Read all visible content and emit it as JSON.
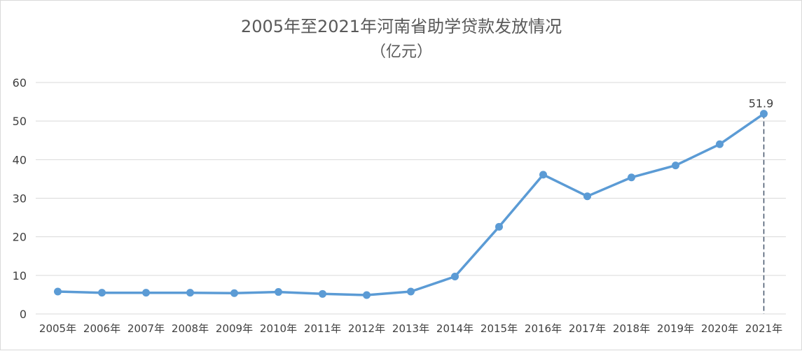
{
  "chart_data": {
    "type": "line",
    "title": "2005年至2021年河南省助学贷款发放情况",
    "subtitle": "（亿元）",
    "xlabel": "",
    "ylabel": "",
    "ylim": [
      0,
      60
    ],
    "yticks": [
      0,
      10,
      20,
      30,
      40,
      50,
      60
    ],
    "grid": true,
    "legend": "none",
    "colors": {
      "line": "#5b9bd5",
      "grid": "#d9d9d9",
      "axis": "#d9d9d9",
      "dash": "#44546a"
    },
    "categories": [
      "2005年",
      "2006年",
      "2007年",
      "2008年",
      "2009年",
      "2010年",
      "2011年",
      "2012年",
      "2013年",
      "2014年",
      "2015年",
      "2016年",
      "2017年",
      "2018年",
      "2019年",
      "2020年",
      "2021年"
    ],
    "series": [
      {
        "values": [
          5.8,
          5.5,
          5.5,
          5.5,
          5.4,
          5.7,
          5.2,
          4.9,
          5.8,
          9.7,
          22.6,
          36.1,
          30.5,
          35.4,
          38.5,
          44.0,
          51.9
        ]
      }
    ],
    "annotations": [
      {
        "category": "2021年",
        "label": "51.9",
        "dropline": true
      }
    ]
  }
}
